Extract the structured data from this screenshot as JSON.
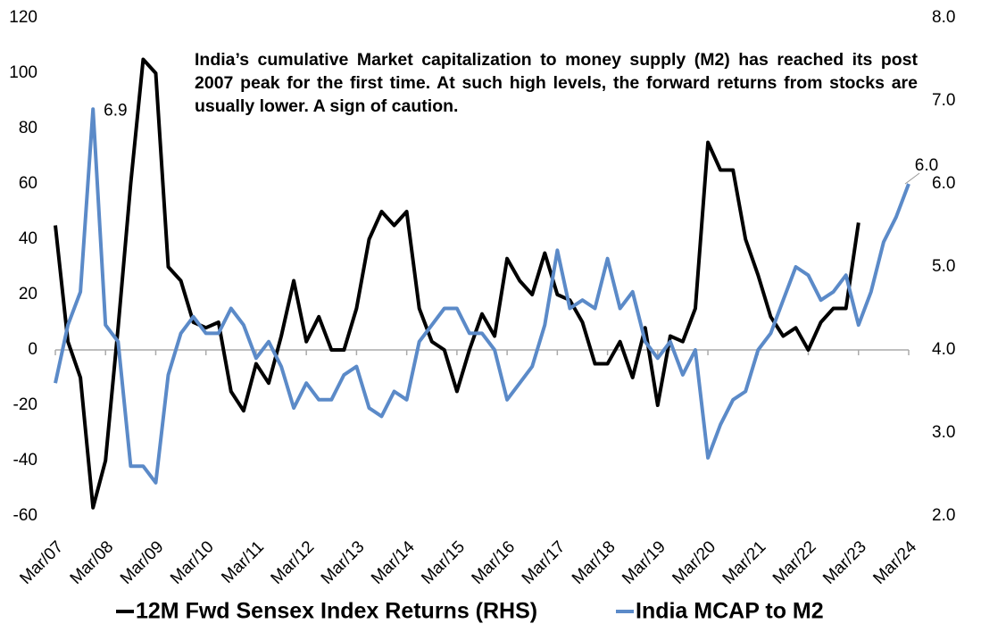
{
  "chart_data": {
    "type": "line",
    "annotation": "India’s cumulative Market capitalization to money supply (M2) has reached its post 2007 peak for the first time. At such high levels, the forward returns from stocks are usually lower. A sign of caution.",
    "point_labels": [
      {
        "text": "6.9",
        "index": 3
      },
      {
        "text": "6.0",
        "index": 68
      }
    ],
    "categories": [
      "Mar/07",
      null,
      null,
      null,
      "Mar/08",
      null,
      null,
      null,
      "Mar/09",
      null,
      null,
      null,
      "Mar/10",
      null,
      null,
      null,
      "Mar/11",
      null,
      null,
      null,
      "Mar/12",
      null,
      null,
      null,
      "Mar/13",
      null,
      null,
      null,
      "Mar/14",
      null,
      null,
      null,
      "Mar/15",
      null,
      null,
      null,
      "Mar/16",
      null,
      null,
      null,
      "Mar/17",
      null,
      null,
      null,
      "Mar/18",
      null,
      null,
      null,
      "Mar/19",
      null,
      null,
      null,
      "Mar/20",
      null,
      null,
      null,
      "Mar/21",
      null,
      null,
      null,
      "Mar/22",
      null,
      null,
      null,
      "Mar/23",
      null,
      null,
      null,
      "Mar/24"
    ],
    "series": [
      {
        "name": "12M Fwd Sensex Index Returns (RHS)",
        "color": "#000000",
        "values": [
          45,
          3,
          -10,
          -57,
          -40,
          8,
          60,
          105,
          100,
          30,
          25,
          10,
          8,
          10,
          -15,
          -22,
          -5,
          -12,
          5,
          25,
          3,
          12,
          0,
          0,
          15,
          40,
          50,
          45,
          50,
          15,
          3,
          0,
          -15,
          0,
          13,
          5,
          33,
          25,
          20,
          35,
          20,
          18,
          10,
          -5,
          -5,
          3,
          -10,
          8,
          -20,
          5,
          3,
          15,
          75,
          65,
          65,
          40,
          27,
          12,
          5,
          8,
          0,
          10,
          15,
          15,
          46,
          null,
          null,
          null,
          null
        ]
      },
      {
        "name": "India MCAP to M2",
        "color": "#5b8ac8",
        "axis": "y2",
        "values": [
          3.6,
          4.3,
          4.7,
          6.9,
          4.3,
          4.1,
          2.6,
          2.6,
          2.4,
          3.7,
          4.2,
          4.4,
          4.2,
          4.2,
          4.5,
          4.3,
          3.9,
          4.1,
          3.8,
          3.3,
          3.6,
          3.4,
          3.4,
          3.7,
          3.8,
          3.3,
          3.2,
          3.5,
          3.4,
          4.1,
          4.3,
          4.5,
          4.5,
          4.2,
          4.2,
          4.0,
          3.4,
          3.6,
          3.8,
          4.3,
          5.2,
          4.5,
          4.6,
          4.5,
          5.1,
          4.5,
          4.7,
          4.1,
          3.9,
          4.1,
          3.7,
          4.0,
          2.7,
          3.1,
          3.4,
          3.5,
          4.0,
          4.2,
          4.6,
          5.0,
          4.9,
          4.6,
          4.7,
          4.9,
          4.3,
          4.7,
          5.3,
          5.6,
          6.0
        ]
      }
    ],
    "ylim": [
      -60,
      120
    ],
    "yticks": [
      -60,
      -40,
      -20,
      0,
      20,
      40,
      60,
      80,
      100,
      120
    ],
    "y2lim": [
      2,
      8
    ],
    "y2ticks": [
      {
        "value": 2,
        "label": "2.0"
      },
      {
        "value": 3,
        "label": "3.0"
      },
      {
        "value": 4,
        "label": "4.0"
      },
      {
        "value": 5,
        "label": "5.0"
      },
      {
        "value": 6,
        "label": "6.0"
      },
      {
        "value": 7,
        "label": "7.0"
      },
      {
        "value": 8,
        "label": "8.0"
      }
    ],
    "grid": false
  }
}
